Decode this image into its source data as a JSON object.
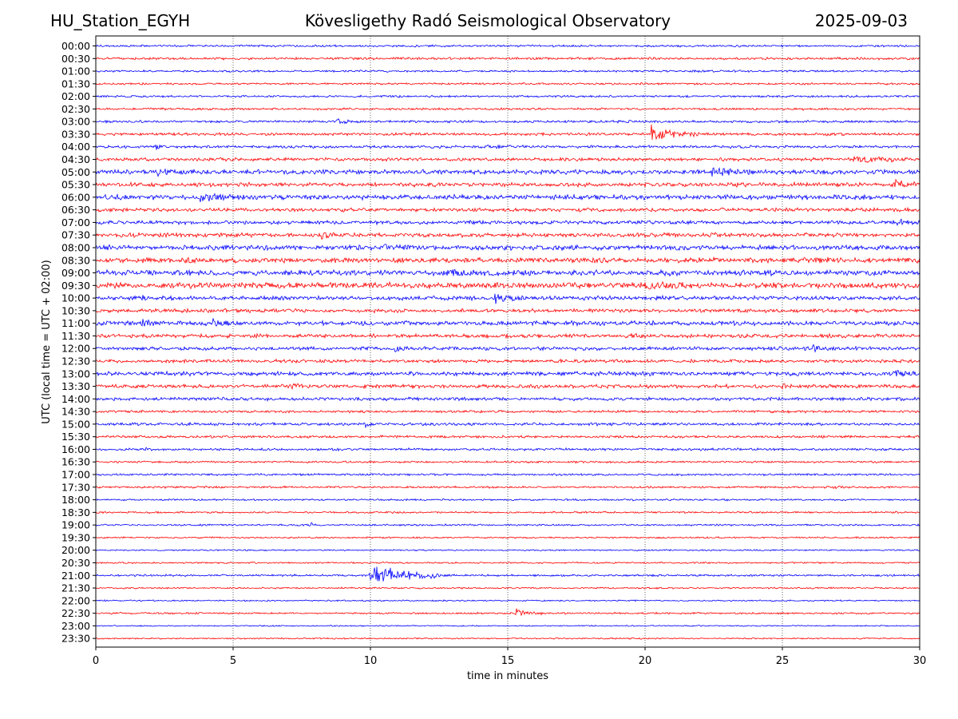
{
  "header": {
    "station": "HU_Station_EGYH",
    "title": "Kövesligethy Radó Seismological Observatory",
    "date": "2025-09-03"
  },
  "chart_data": {
    "type": "line",
    "title": "Kövesligethy Radó Seismological Observatory",
    "xlabel": "time in minutes",
    "ylabel": "UTC (local time = UTC + 02:00)",
    "xlim": [
      0,
      30
    ],
    "xticks": [
      "0",
      "5",
      "10",
      "15",
      "20",
      "25",
      "30"
    ],
    "grid": "vertical dotted lines at 5, 10, 15, 20, 25 minutes",
    "colors": {
      "even_rows": "#0000ff",
      "odd_rows": "#ff0000"
    },
    "row_labels": [
      "00:00",
      "00:30",
      "01:00",
      "01:30",
      "02:00",
      "02:30",
      "03:00",
      "03:30",
      "04:00",
      "04:30",
      "05:00",
      "05:30",
      "06:00",
      "06:30",
      "07:00",
      "07:30",
      "08:00",
      "08:30",
      "09:00",
      "09:30",
      "10:00",
      "10:30",
      "11:00",
      "11:30",
      "12:00",
      "12:30",
      "13:00",
      "13:30",
      "14:00",
      "14:30",
      "15:00",
      "15:30",
      "16:00",
      "16:30",
      "17:00",
      "17:30",
      "18:00",
      "18:30",
      "19:00",
      "19:30",
      "20:00",
      "20:30",
      "21:00",
      "21:30",
      "22:00",
      "22:30",
      "23:00",
      "23:30"
    ],
    "noise_level": [
      1.0,
      1.2,
      1.0,
      1.0,
      1.0,
      1.1,
      1.2,
      1.4,
      1.4,
      1.6,
      2.2,
      2.0,
      2.4,
      1.8,
      1.8,
      2.0,
      2.4,
      2.4,
      2.6,
      2.8,
      2.0,
      1.8,
      2.2,
      1.8,
      1.8,
      1.6,
      2.0,
      1.8,
      1.6,
      1.2,
      1.4,
      1.2,
      1.2,
      1.0,
      1.0,
      1.0,
      0.9,
      0.9,
      0.9,
      0.8,
      0.7,
      0.8,
      1.0,
      0.8,
      0.7,
      0.9,
      0.6,
      0.7
    ],
    "events": [
      {
        "row": 6,
        "minute": 8.8,
        "amp": 3,
        "dur": 0.6
      },
      {
        "row": 7,
        "minute": 20.2,
        "amp": 8,
        "dur": 1.8
      },
      {
        "row": 8,
        "minute": 2.2,
        "amp": 5,
        "dur": 0.3
      },
      {
        "row": 8,
        "minute": 14.3,
        "amp": 4,
        "dur": 0.8
      },
      {
        "row": 9,
        "minute": 27.5,
        "amp": 3,
        "dur": 2.5
      },
      {
        "row": 10,
        "minute": 2.2,
        "amp": 3,
        "dur": 1.5
      },
      {
        "row": 10,
        "minute": 22.4,
        "amp": 4,
        "dur": 1.5
      },
      {
        "row": 11,
        "minute": 29.0,
        "amp": 5,
        "dur": 1.0
      },
      {
        "row": 12,
        "minute": 3.8,
        "amp": 4,
        "dur": 1.5
      },
      {
        "row": 14,
        "minute": 29.0,
        "amp": 3,
        "dur": 1.0
      },
      {
        "row": 15,
        "minute": 8.2,
        "amp": 3,
        "dur": 0.6
      },
      {
        "row": 15,
        "minute": 22.3,
        "amp": 4,
        "dur": 0.3
      },
      {
        "row": 16,
        "minute": 10.5,
        "amp": 3,
        "dur": 1.0
      },
      {
        "row": 17,
        "minute": 26.2,
        "amp": 3,
        "dur": 1.2
      },
      {
        "row": 18,
        "minute": 12.8,
        "amp": 3,
        "dur": 1.5
      },
      {
        "row": 19,
        "minute": 20.0,
        "amp": 4,
        "dur": 1.5
      },
      {
        "row": 20,
        "minute": 1.7,
        "amp": 4,
        "dur": 0.3
      },
      {
        "row": 20,
        "minute": 14.5,
        "amp": 4,
        "dur": 1.2
      },
      {
        "row": 22,
        "minute": 1.7,
        "amp": 4,
        "dur": 0.4
      },
      {
        "row": 22,
        "minute": 4.2,
        "amp": 4,
        "dur": 1.0
      },
      {
        "row": 23,
        "minute": 19.3,
        "amp": 3,
        "dur": 0.6
      },
      {
        "row": 24,
        "minute": 10.9,
        "amp": 4,
        "dur": 0.5
      },
      {
        "row": 24,
        "minute": 26.1,
        "amp": 4,
        "dur": 0.7
      },
      {
        "row": 26,
        "minute": 29.0,
        "amp": 4,
        "dur": 1.0
      },
      {
        "row": 27,
        "minute": 7.1,
        "amp": 4,
        "dur": 0.5
      },
      {
        "row": 27,
        "minute": 25.0,
        "amp": 4,
        "dur": 0.2
      },
      {
        "row": 30,
        "minute": 9.8,
        "amp": 5,
        "dur": 0.2
      },
      {
        "row": 32,
        "minute": 1.8,
        "amp": 4,
        "dur": 0.3
      },
      {
        "row": 35,
        "minute": 26.9,
        "amp": 5,
        "dur": 0.3
      },
      {
        "row": 38,
        "minute": 7.8,
        "amp": 3,
        "dur": 0.3
      },
      {
        "row": 42,
        "minute": 10.0,
        "amp": 14,
        "dur": 2.5
      },
      {
        "row": 45,
        "minute": 15.3,
        "amp": 4,
        "dur": 1.0
      }
    ]
  }
}
